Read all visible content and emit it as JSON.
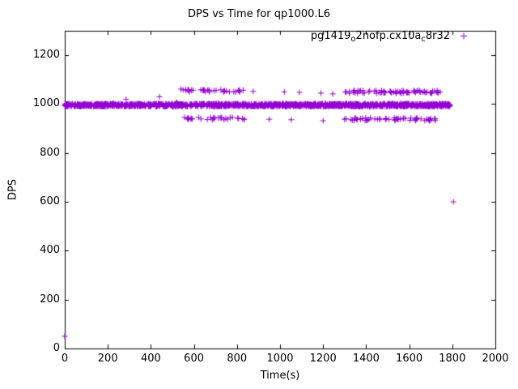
{
  "figure": {
    "background": "#ffffff"
  },
  "chart_data": {
    "type": "scatter",
    "title": "DPS vs Time for qp1000.L6",
    "xlabel": "Time(s)",
    "ylabel": "DPS",
    "xlim": [
      0,
      2000
    ],
    "ylim": [
      0,
      1300
    ],
    "xticks": [
      0,
      200,
      400,
      600,
      800,
      1000,
      1200,
      1400,
      1600,
      1800,
      2000
    ],
    "yticks": [
      0,
      200,
      400,
      600,
      800,
      1000,
      1200
    ],
    "grid": false,
    "legend_position": "top-right-inside",
    "marker": "plus",
    "marker_color": "#9400d3",
    "series": [
      {
        "name": "pg1419_o2nofp.cx10a_c8r32",
        "color": "#9400d3",
        "summary": "Dense steady band near 1000 DPS from t=0s to ~1790s; secondary scattered levels near ~1050 DPS and ~940 DPS between ~550s and ~1750s; outliers at (0,~50) and (~1805,~600).",
        "bands": [
          {
            "x_start": 0,
            "x_end": 1792,
            "y_center": 996,
            "y_jitter": 6,
            "count": 1500,
            "note": "main dense band ~1000 DPS"
          },
          {
            "x_start": 548,
            "x_end": 835,
            "y_center": 1054,
            "y_jitter": 5,
            "count": 34,
            "note": "upper scatter cluster 1"
          },
          {
            "x_start": 1298,
            "x_end": 1752,
            "y_center": 1050,
            "y_jitter": 6,
            "count": 75,
            "note": "upper scatter cluster 2"
          },
          {
            "x_start": 552,
            "x_end": 845,
            "y_center": 941,
            "y_jitter": 5,
            "count": 30,
            "note": "lower scatter cluster 1"
          },
          {
            "x_start": 1290,
            "x_end": 1725,
            "y_center": 938,
            "y_jitter": 6,
            "count": 60,
            "note": "lower scatter cluster 2"
          }
        ],
        "points": [
          [
            0,
            50
          ],
          [
            285,
            1020
          ],
          [
            440,
            1030
          ],
          [
            520,
            1008
          ],
          [
            540,
            1062
          ],
          [
            562,
            1058
          ],
          [
            875,
            1052
          ],
          [
            1020,
            1050
          ],
          [
            1090,
            1048
          ],
          [
            1190,
            1045
          ],
          [
            1245,
            1042
          ],
          [
            950,
            938
          ],
          [
            1052,
            936
          ],
          [
            1200,
            932
          ],
          [
            1805,
            600
          ]
        ]
      }
    ]
  },
  "legend": {
    "plain": "pg1419_o2nofp.cx10a_c8r32",
    "segments": [
      {
        "text": "pg1419",
        "sub": false
      },
      {
        "text": "o",
        "sub": true
      },
      {
        "text": "2nofp.cx10a",
        "sub": false
      },
      {
        "text": "c",
        "sub": true
      },
      {
        "text": "8r32",
        "sub": false
      }
    ]
  }
}
